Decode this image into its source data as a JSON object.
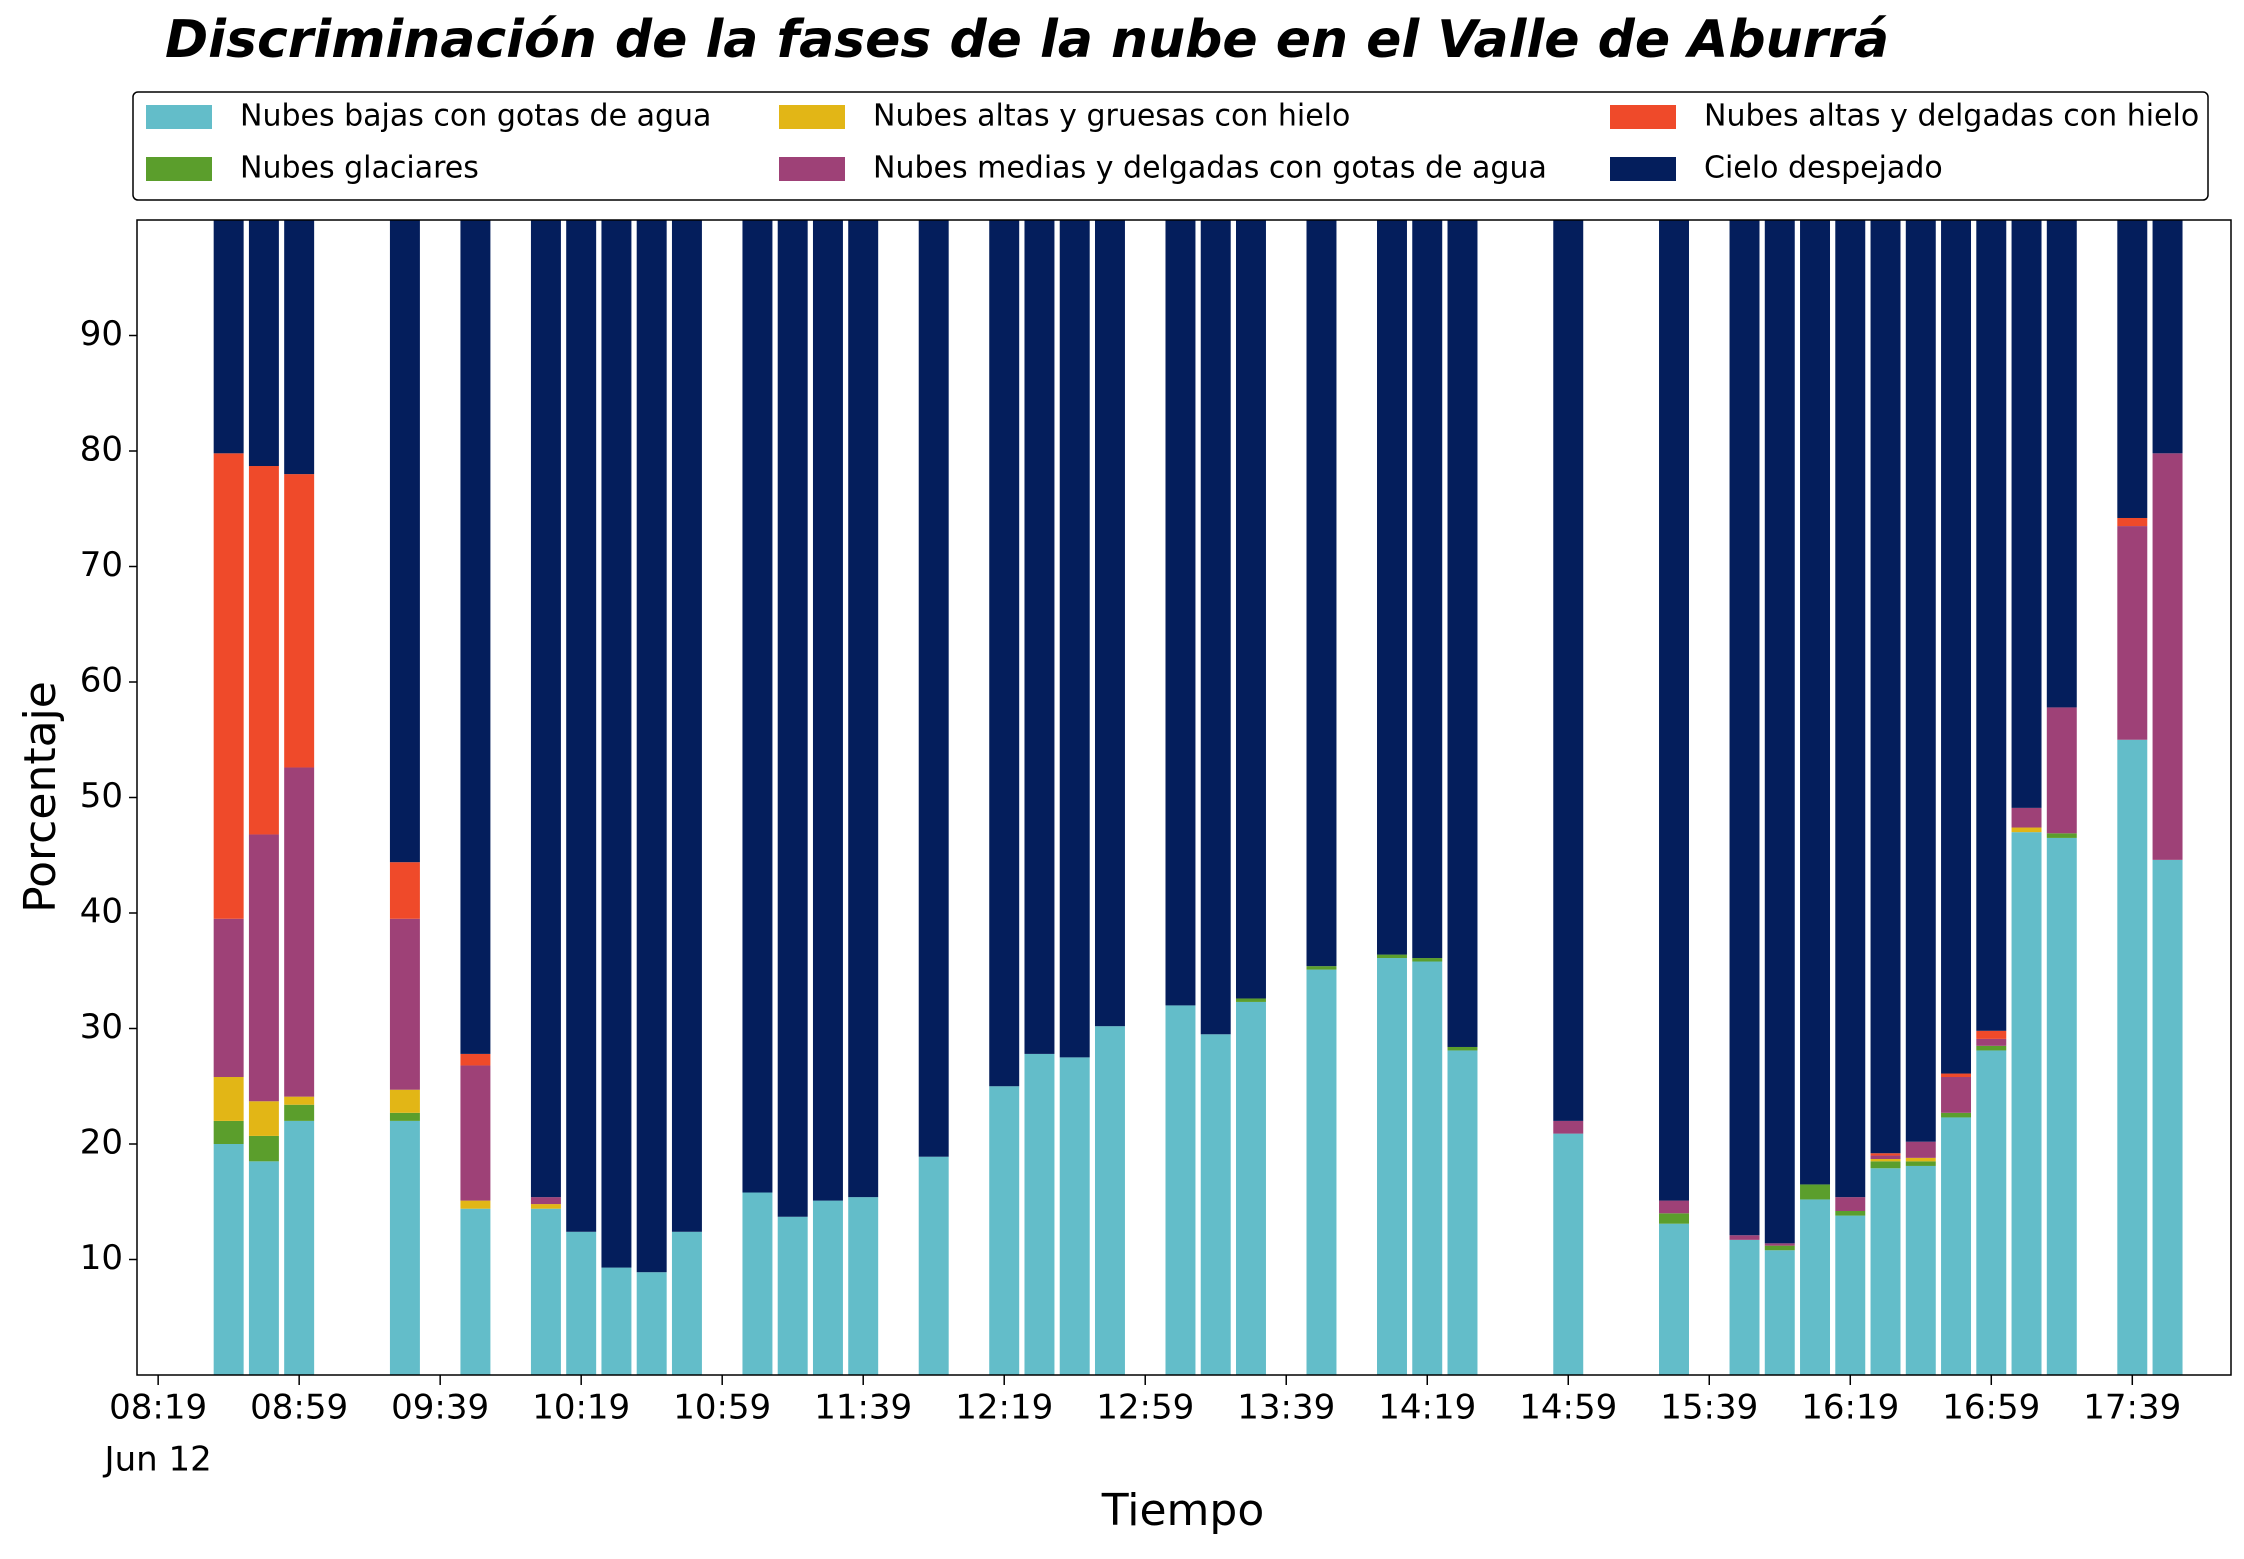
{
  "chart_data": {
    "type": "bar",
    "stacked": true,
    "title": "Discriminación de la fases de la nube en el Valle de Aburrá",
    "xlabel": "Tiempo",
    "ylabel": "Porcentaje",
    "date_label": "Jun 12",
    "x": [
      "08:39",
      "08:49",
      "08:59",
      "09:29",
      "09:49",
      "10:09",
      "10:19",
      "10:29",
      "10:39",
      "10:49",
      "11:09",
      "11:19",
      "11:29",
      "11:39",
      "11:59",
      "12:19",
      "12:29",
      "12:39",
      "12:49",
      "13:09",
      "13:19",
      "13:29",
      "13:49",
      "14:09",
      "14:19",
      "14:29",
      "14:59",
      "15:29",
      "15:49",
      "15:59",
      "16:09",
      "16:19",
      "16:29",
      "16:39",
      "16:49",
      "16:59",
      "17:09",
      "17:19",
      "17:39",
      "17:49"
    ],
    "xlim": [
      "08:13",
      "18:07"
    ],
    "xticks": [
      "08:19",
      "08:59",
      "09:39",
      "10:19",
      "10:59",
      "11:39",
      "12:19",
      "12:59",
      "13:39",
      "14:19",
      "14:59",
      "15:39",
      "16:19",
      "16:59",
      "17:39"
    ],
    "ylim": [
      0,
      100
    ],
    "yticks": [
      10,
      20,
      30,
      40,
      50,
      60,
      70,
      80,
      90
    ],
    "legend_position": "top",
    "series": [
      {
        "name": "Nubes bajas con gotas de agua",
        "color": "#63bdc9",
        "values": [
          20,
          18.5,
          22,
          22,
          14.4,
          14.4,
          12.4,
          9.3,
          8.9,
          12.4,
          15.8,
          13.7,
          15.1,
          15.4,
          18.9,
          25,
          27.8,
          27.5,
          30.2,
          32,
          29.5,
          32.3,
          35.1,
          36.1,
          35.8,
          28.1,
          20.9,
          13.1,
          11.7,
          10.8,
          15.2,
          13.8,
          17.9,
          18.1,
          22.3,
          28.1,
          47,
          46.5,
          55,
          44.6
        ]
      },
      {
        "name": "Nubes glaciares",
        "color": "#5b9e2c",
        "values": [
          2,
          2.2,
          1.4,
          0.7,
          0,
          0,
          0,
          0,
          0,
          0,
          0,
          0,
          0,
          0,
          0,
          0,
          0,
          0,
          0,
          0,
          0,
          0.3,
          0.3,
          0.3,
          0.3,
          0.3,
          0,
          0.9,
          0,
          0.4,
          1.3,
          0.4,
          0.6,
          0.4,
          0.4,
          0.4,
          0,
          0.4,
          0,
          0
        ]
      },
      {
        "name": "Nubes altas y gruesas con hielo",
        "color": "#e2b616",
        "values": [
          3.8,
          3,
          0.7,
          2,
          0.7,
          0.4,
          0,
          0,
          0,
          0,
          0,
          0,
          0,
          0,
          0,
          0,
          0,
          0,
          0,
          0,
          0,
          0,
          0,
          0,
          0,
          0,
          0,
          0,
          0,
          0,
          0,
          0,
          0.2,
          0.3,
          0,
          0,
          0.4,
          0,
          0,
          0
        ]
      },
      {
        "name": "Nubes medias y delgadas con gotas de agua",
        "color": "#9e4177",
        "values": [
          13.7,
          23.1,
          28.5,
          14.8,
          11.7,
          0.6,
          0,
          0,
          0,
          0,
          0,
          0,
          0,
          0,
          0,
          0,
          0,
          0,
          0,
          0,
          0,
          0,
          0,
          0,
          0,
          0,
          1.1,
          1.1,
          0.4,
          0.2,
          0,
          1.2,
          0.3,
          1.4,
          3.1,
          0.6,
          1.7,
          10.9,
          18.5,
          35.2
        ]
      },
      {
        "name": "Nubes altas y delgadas con hielo",
        "color": "#ef4a2a",
        "values": [
          40.3,
          31.9,
          25.4,
          4.9,
          1,
          0,
          0,
          0,
          0,
          0,
          0,
          0,
          0,
          0,
          0,
          0,
          0,
          0,
          0,
          0,
          0,
          0,
          0,
          0,
          0,
          0,
          0,
          0,
          0,
          0,
          0,
          0,
          0.2,
          0,
          0.3,
          0.7,
          0,
          0,
          0.7,
          0
        ]
      },
      {
        "name": "Cielo despejado",
        "color": "#041e5c",
        "values": [
          20.2,
          21.3,
          22,
          55.6,
          72.2,
          84.6,
          87.6,
          90.7,
          91.1,
          87.6,
          84.2,
          86.3,
          84.9,
          84.6,
          81.1,
          75,
          72.2,
          72.5,
          69.8,
          68,
          70.5,
          67.4,
          64.6,
          63.6,
          63.9,
          71.6,
          78,
          84.9,
          87.9,
          88.6,
          83.5,
          84.6,
          80.8,
          79.8,
          73.9,
          70.2,
          50.9,
          42.2,
          25.8,
          20.2
        ]
      }
    ]
  }
}
